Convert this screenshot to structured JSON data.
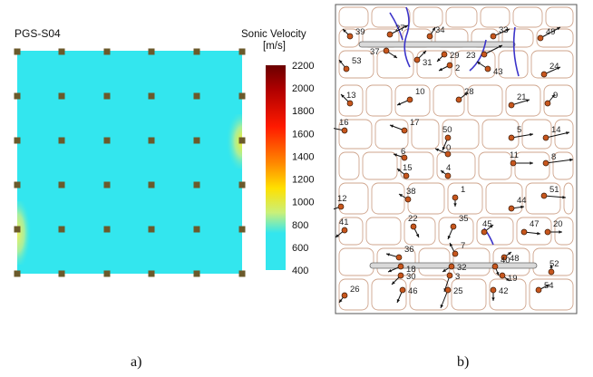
{
  "panel_a": {
    "title": "PGS-S04",
    "legend_title_line1": "Sonic Velocity",
    "legend_title_line2": "[m/s]",
    "legend_ticks": [
      "2200",
      "2000",
      "1800",
      "1600",
      "1400",
      "1200",
      "1000",
      "800",
      "600",
      "400"
    ],
    "colors": {
      "field": "#33e6ee",
      "sensor": "#6b5a2b",
      "bar_top": "#6b0000",
      "bar_bottom": "#33e6ee"
    }
  },
  "panel_b": {
    "labels": [
      "39",
      "27",
      "34",
      "33",
      "49",
      "37",
      "31",
      "29",
      "2",
      "23",
      "43",
      "53",
      "24",
      "13",
      "10",
      "28",
      "21",
      "9",
      "17",
      "16",
      "50",
      "5",
      "14",
      "0",
      "6",
      "11",
      "8",
      "15",
      "4",
      "51",
      "12",
      "38",
      "1",
      "44",
      "41",
      "22",
      "35",
      "45",
      "47",
      "20",
      "36",
      "7",
      "48",
      "18",
      "32",
      "40",
      "52",
      "30",
      "3",
      "19",
      "26",
      "46",
      "25",
      "42",
      "54"
    ],
    "colors": {
      "rock": "#cfa58d",
      "fracture": "#3b33c9",
      "sensor": "#c7561d"
    }
  },
  "captions": {
    "a": "a)",
    "b": "b)"
  }
}
